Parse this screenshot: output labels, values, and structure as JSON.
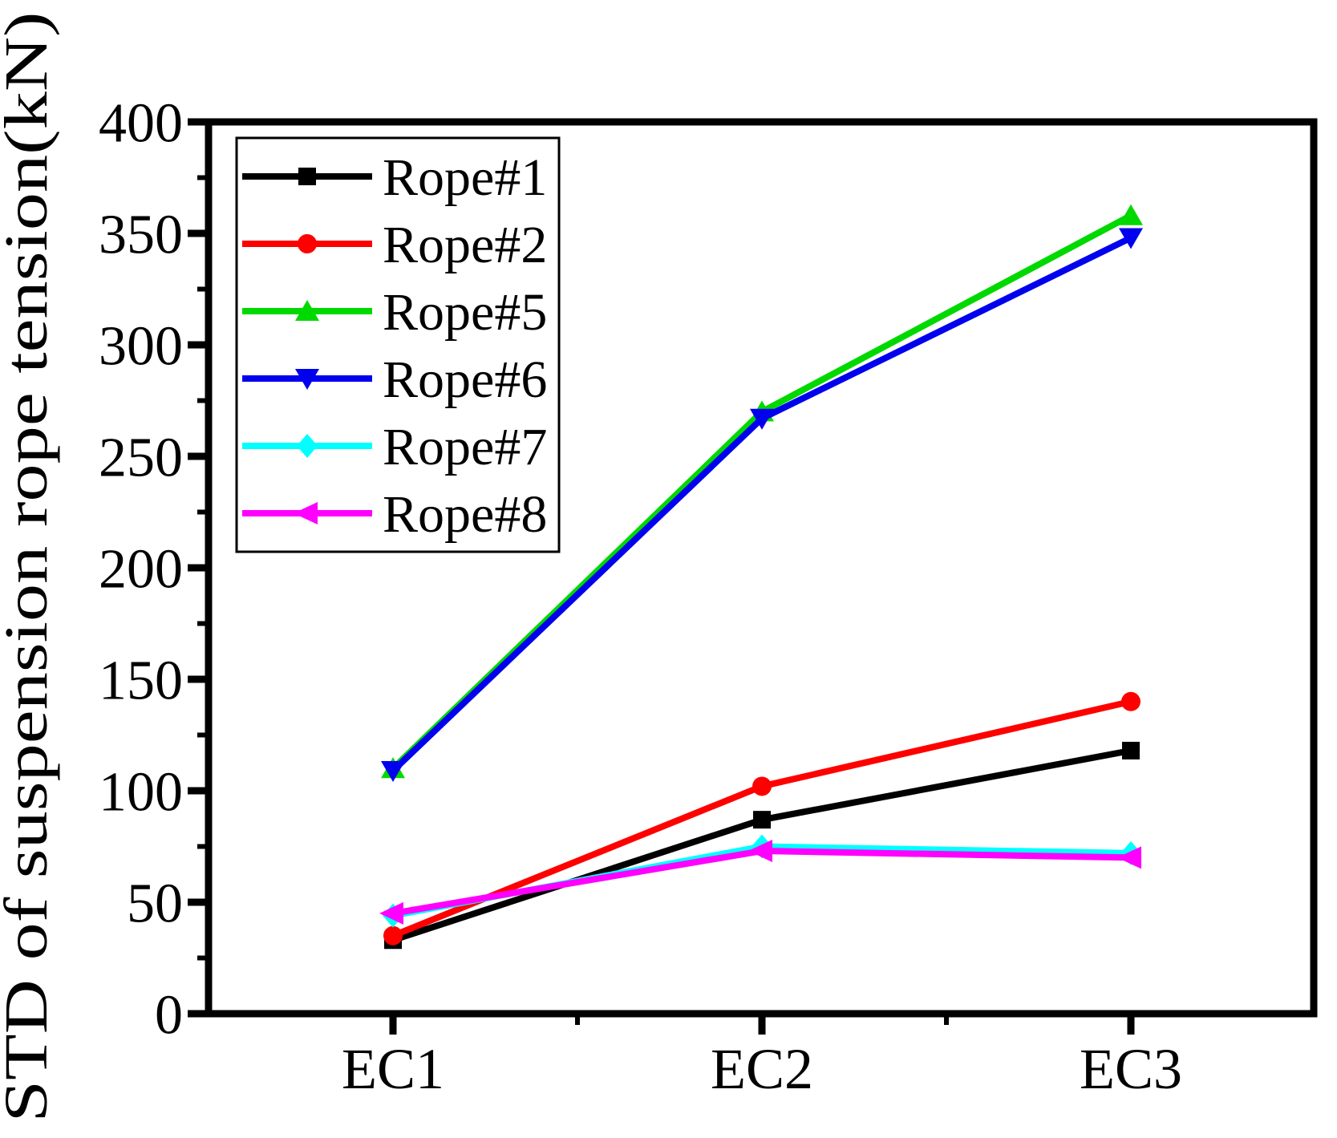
{
  "figure": {
    "kind": "scientific line chart",
    "background": "#ffffff",
    "frame_color": "#000000"
  },
  "chart_data": {
    "type": "line",
    "title": "",
    "xlabel": "",
    "ylabel": "STD of suspension rope tension(kN)",
    "categories": [
      "EC1",
      "EC2",
      "EC3"
    ],
    "ylim": [
      0,
      400
    ],
    "yticks": [
      0,
      50,
      100,
      150,
      200,
      250,
      300,
      350,
      400
    ],
    "ytick_step": 50,
    "ytick_minor_step": 25,
    "grid": false,
    "legend_position": "upper-left-inside",
    "series": [
      {
        "name": "Rope#1",
        "color": "#000000",
        "marker": "square",
        "values": [
          33,
          87,
          118
        ]
      },
      {
        "name": "Rope#2",
        "color": "#ff0000",
        "marker": "circle",
        "values": [
          35,
          102,
          140
        ]
      },
      {
        "name": "Rope#5",
        "color": "#00d900",
        "marker": "triangle-up",
        "values": [
          110,
          270,
          358
        ]
      },
      {
        "name": "Rope#6",
        "color": "#0000ee",
        "marker": "triangle-down",
        "values": [
          109,
          267,
          348
        ]
      },
      {
        "name": "Rope#7",
        "color": "#00ffff",
        "marker": "diamond",
        "values": [
          44,
          75,
          72
        ]
      },
      {
        "name": "Rope#8",
        "color": "#ff00ff",
        "marker": "triangle-left",
        "values": [
          45,
          73,
          70
        ]
      }
    ]
  }
}
